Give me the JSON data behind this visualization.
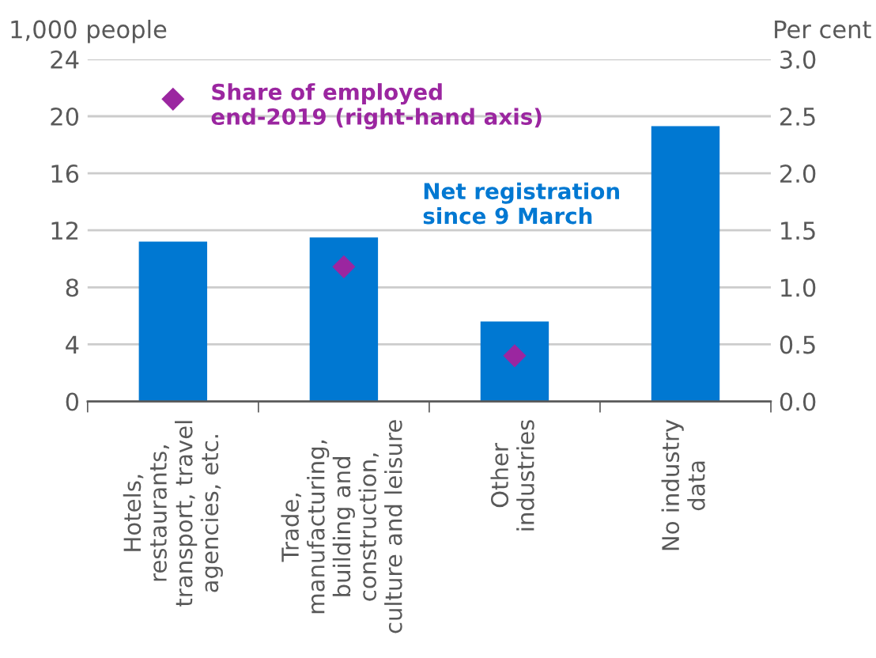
{
  "chart_data": {
    "type": "bar",
    "categories": [
      "Hotels,\nrestaurants,\ntransport, travel\nagencies, etc.",
      "Trade,\nmanufacturing,\nbuilding and\nconstruction,\nculture and leisure",
      "Other\nindustries",
      "No industry\ndata"
    ],
    "series": [
      {
        "name": "Net registration\nsince 9 March",
        "color": "#0078d2",
        "values": [
          11.2,
          11.5,
          5.6,
          19.3
        ]
      },
      {
        "name": "Share of employed\nend-2019 (right-hand axis)",
        "type": "scatter",
        "axis": "y2",
        "color": "#9b26a0",
        "values": [
          2.65,
          1.18,
          0.4,
          null
        ]
      }
    ],
    "ylabel": "1,000 people",
    "y2label": "Per cent",
    "ylim": [
      0,
      24
    ],
    "yticks": [
      0,
      4,
      8,
      12,
      16,
      20,
      24
    ],
    "y2lim": [
      0,
      3.0
    ],
    "y2ticks": [
      {
        "value": 0,
        "label": "0.0"
      },
      {
        "value": 0.5,
        "label": "0.5"
      },
      {
        "value": 1.0,
        "label": "1.0"
      },
      {
        "value": 1.5,
        "label": "1.5"
      },
      {
        "value": 2.0,
        "label": "2.0"
      },
      {
        "value": 2.5,
        "label": "2.5"
      },
      {
        "value": 3.0,
        "label": "3.0"
      }
    ],
    "grid": "y",
    "marker": "diamond",
    "legend": false
  }
}
